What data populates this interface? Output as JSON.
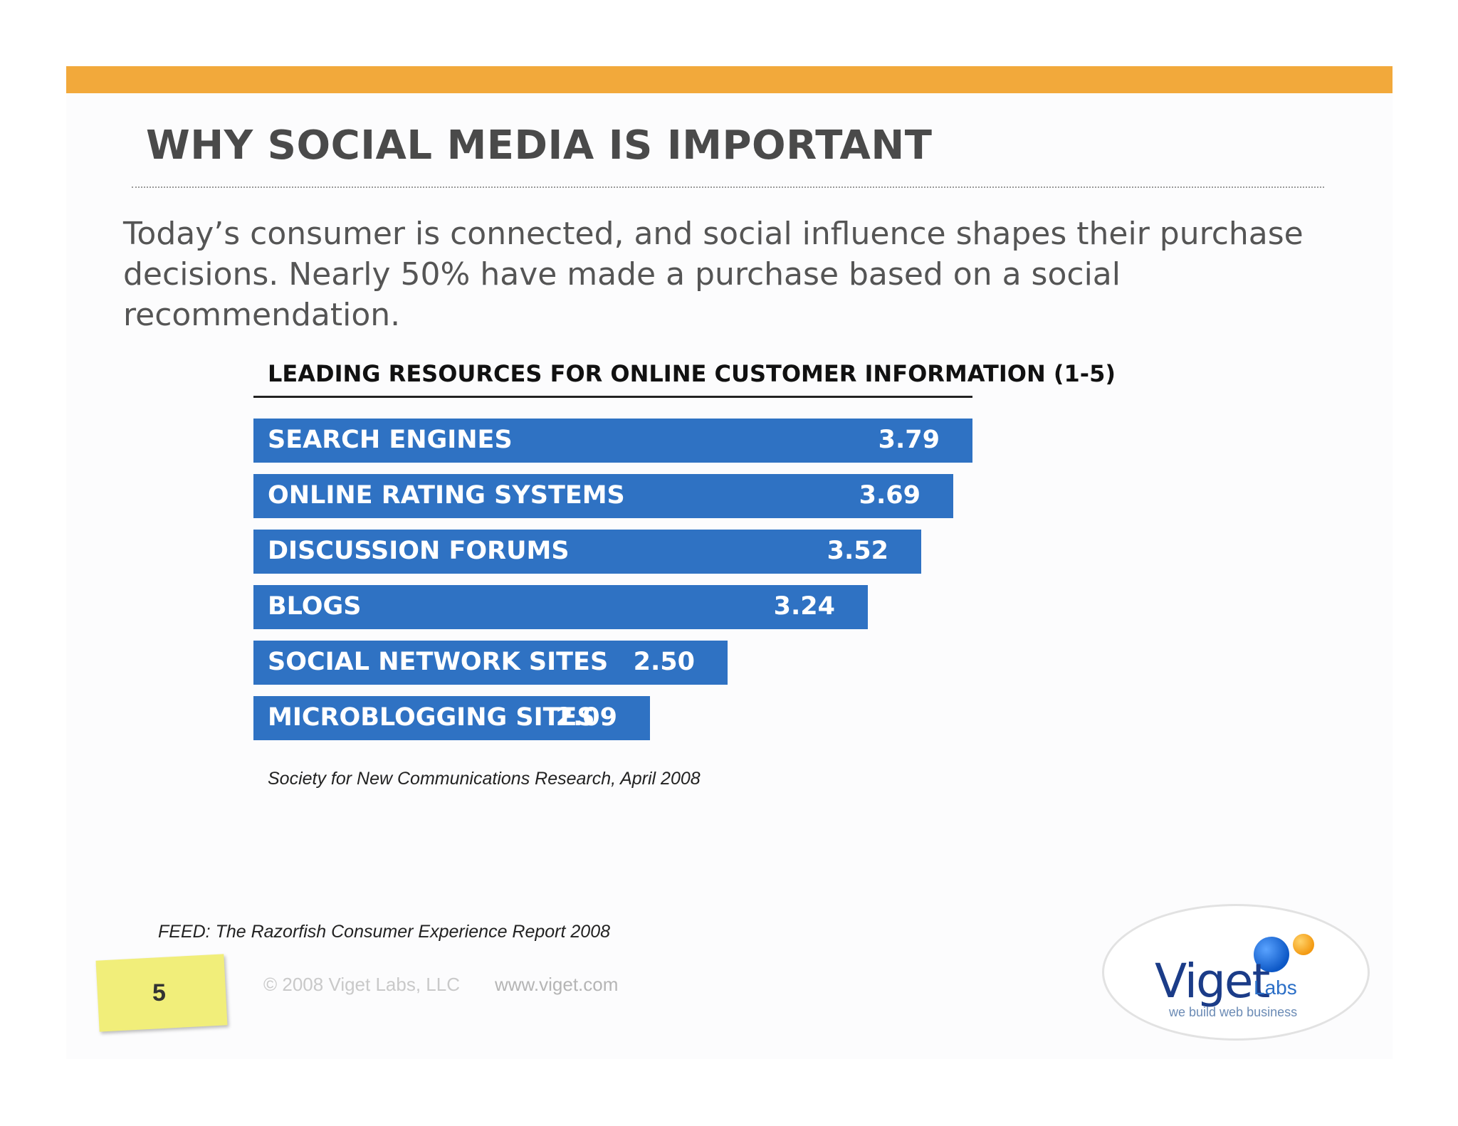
{
  "slide": {
    "title": "WHY SOCIAL MEDIA IS IMPORTANT",
    "intro_line1": "Today’s consumer is connected, and social influence shapes their purchase",
    "intro_line2": "decisions. Nearly 50% have made a purchase based on a social recommendation.",
    "feed_source": "FEED: The Razorfish Consumer Experience Report 2008",
    "page_number": "5",
    "copyright": "© 2008 Viget Labs, LLC",
    "website": "www.viget.com"
  },
  "logo": {
    "name": "Viget",
    "sub": "Labs",
    "tagline": "we build web business"
  },
  "colors": {
    "accent_bar": "#f2a93b",
    "bar_fill": "#2f72c3",
    "title_text": "#4a4a4a",
    "sticky_note": "#f1ee7a"
  },
  "chart_data": {
    "type": "bar",
    "orientation": "horizontal",
    "title": "LEADING RESOURCES FOR ONLINE CUSTOMER INFORMATION (1-5)",
    "source": "Society for New Communications Research, April 2008",
    "categories": [
      "SEARCH ENGINES",
      "ONLINE RATING SYSTEMS",
      "DISCUSSION FORUMS",
      "BLOGS",
      "SOCIAL NETWORK SITES",
      "MICROBLOGGING SITES"
    ],
    "values": [
      3.79,
      3.69,
      3.52,
      3.24,
      2.5,
      2.09
    ],
    "value_labels": [
      "3.79",
      "3.69",
      "3.52",
      "3.24",
      "2.50",
      "2.09"
    ],
    "scale": [
      1,
      5
    ],
    "xlabel": "",
    "ylabel": ""
  }
}
